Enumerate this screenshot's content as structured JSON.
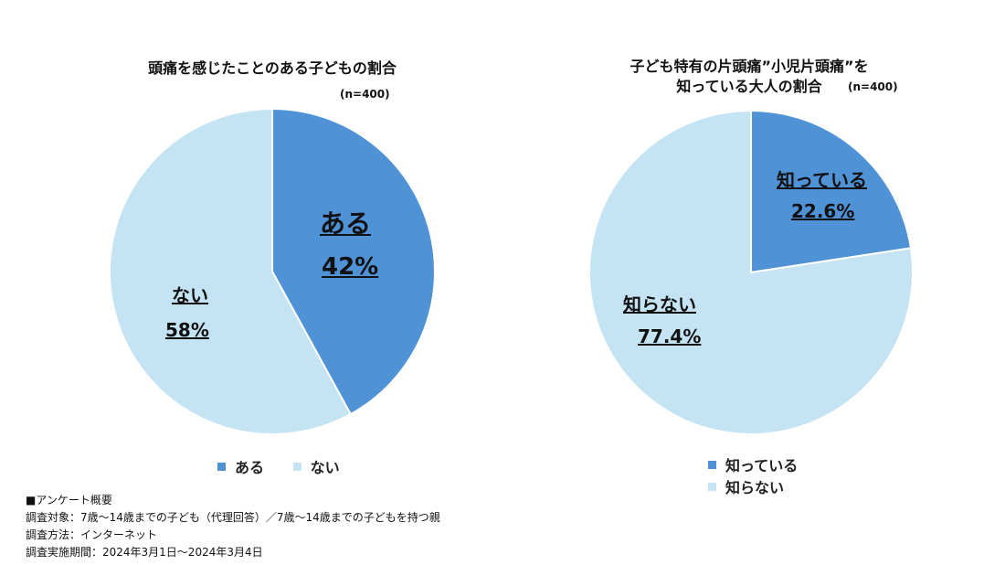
{
  "chart_data": [
    {
      "type": "pie",
      "title": "頭痛を感じたことのある子どもの割合",
      "sample_note": "(n=400)",
      "slices": [
        {
          "label": "ある",
          "value": 42,
          "value_label": "42%",
          "color": "#4f93d6"
        },
        {
          "label": "ない",
          "value": 58,
          "value_label": "58%",
          "color": "#c4e3f3"
        }
      ],
      "legend": [
        "ある",
        "ない"
      ],
      "legend_position": "bottom"
    },
    {
      "type": "pie",
      "title_lines": [
        "子ども特有の片頭痛”小児片頭痛”を",
        "知っている大人の割合"
      ],
      "sample_note": "(n=400)",
      "slices": [
        {
          "label": "知っている",
          "value": 22.6,
          "value_label": "22.6%",
          "color": "#4f93d6"
        },
        {
          "label": "知らない",
          "value": 77.4,
          "value_label": "77.4%",
          "color": "#c4e3f3"
        }
      ],
      "legend": [
        "知っている",
        "知らない"
      ],
      "legend_position": "bottom"
    }
  ],
  "survey_notes": [
    "■アンケート概要",
    "調査対象：7歳～14歳までの子ども（代理回答）／7歳～14歳までの子どもを持つ親",
    "調査方法：インターネット",
    "調査実施期間：2024年3月1日～2024年3月4日"
  ]
}
